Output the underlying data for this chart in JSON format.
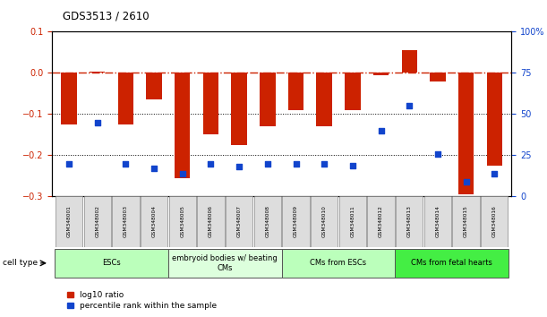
{
  "title": "GDS3513 / 2610",
  "samples": [
    "GSM348001",
    "GSM348002",
    "GSM348003",
    "GSM348004",
    "GSM348005",
    "GSM348006",
    "GSM348007",
    "GSM348008",
    "GSM348009",
    "GSM348010",
    "GSM348011",
    "GSM348012",
    "GSM348013",
    "GSM348014",
    "GSM348015",
    "GSM348016"
  ],
  "log10_ratio": [
    -0.125,
    0.003,
    -0.125,
    -0.065,
    -0.255,
    -0.15,
    -0.175,
    -0.13,
    -0.09,
    -0.13,
    -0.09,
    -0.005,
    0.055,
    -0.02,
    -0.295,
    -0.225
  ],
  "percentile_rank": [
    20,
    45,
    20,
    17,
    14,
    20,
    18,
    20,
    20,
    20,
    19,
    40,
    55,
    26,
    9,
    14
  ],
  "red_color": "#CC2200",
  "blue_color": "#1144CC",
  "ylim_left": [
    -0.3,
    0.1
  ],
  "ylim_right": [
    0,
    100
  ],
  "yticks_left": [
    -0.3,
    -0.2,
    -0.1,
    0,
    0.1
  ],
  "yticks_right": [
    0,
    25,
    50,
    75,
    100
  ],
  "ytick_labels_right": [
    "0",
    "25",
    "50",
    "75",
    "100%"
  ],
  "cell_groups": [
    {
      "label": "ESCs",
      "start": 0,
      "end": 3,
      "color": "#BBFFBB"
    },
    {
      "label": "embryoid bodies w/ beating\nCMs",
      "start": 4,
      "end": 7,
      "color": "#DDFFDD"
    },
    {
      "label": "CMs from ESCs",
      "start": 8,
      "end": 11,
      "color": "#BBFFBB"
    },
    {
      "label": "CMs from fetal hearts",
      "start": 12,
      "end": 15,
      "color": "#44EE44"
    }
  ],
  "bar_width": 0.55,
  "dot_size": 18,
  "dotted_lines": [
    -0.1,
    -0.2
  ],
  "cell_type_label": "cell type",
  "legend_red": "log10 ratio",
  "legend_blue": "percentile rank within the sample",
  "bg_color": "#FFFFFF",
  "plot_bg": "#FFFFFF"
}
